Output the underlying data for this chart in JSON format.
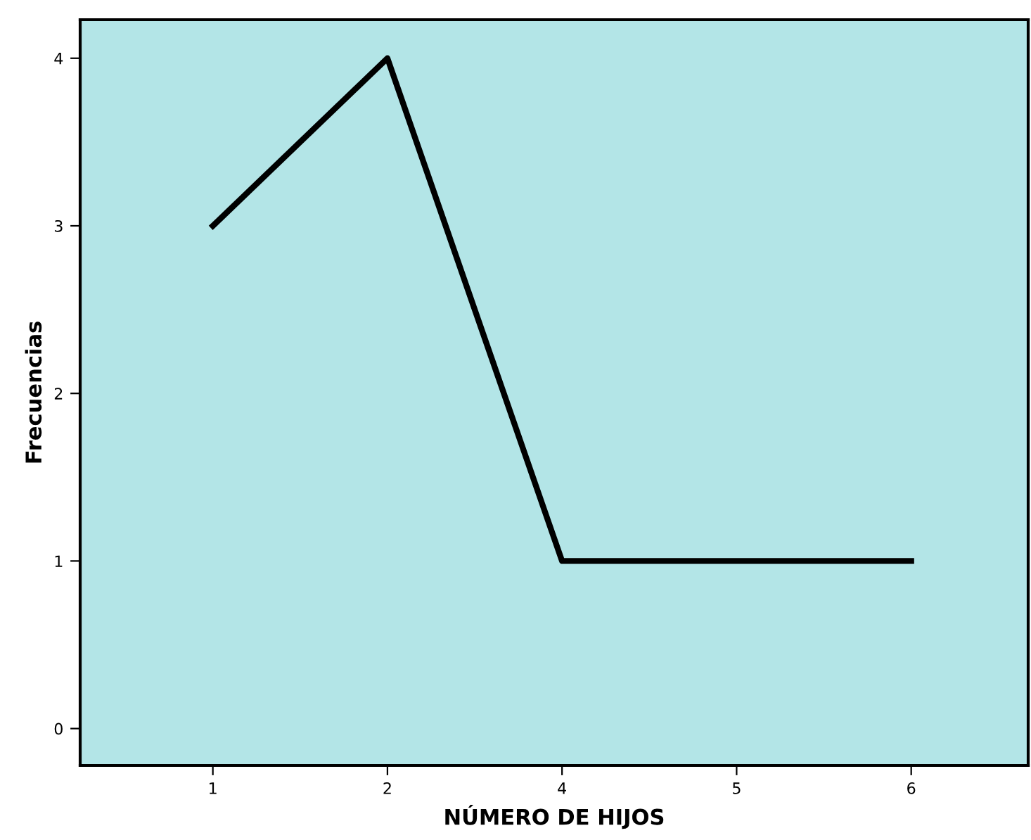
{
  "chart_data": {
    "type": "line",
    "xlabel": "NÚMERO DE HIJOS",
    "ylabel": "Frecuencias",
    "categories": [
      "1",
      "2",
      "4",
      "5",
      "6"
    ],
    "series": [
      {
        "color": "#000000",
        "values": [
          3,
          4,
          1,
          1,
          1
        ]
      }
    ],
    "ylim": [
      -0.22,
      4.23
    ],
    "yticks": [
      0,
      1,
      2,
      3,
      4
    ],
    "grid": false,
    "marker": "none",
    "line_style": "solid",
    "legend": false
  }
}
